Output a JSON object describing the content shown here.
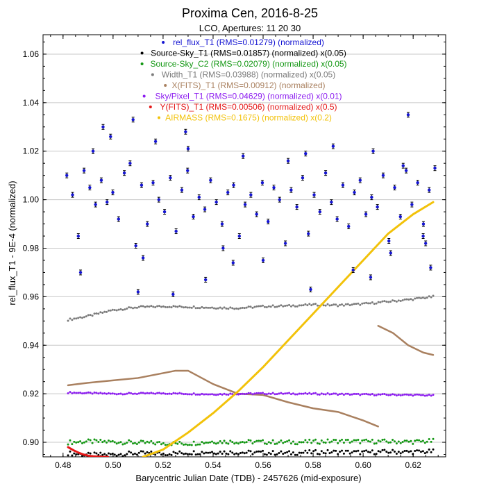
{
  "chart_data": {
    "type": "scatter",
    "title": "Proxima Cen, 2016-8-25",
    "subtitle": "LCO, Apertures: 11 20 30",
    "xlabel": "Barycentric Julian Date (TDB) - 2457626 (mid-exposure)",
    "ylabel": "rel_flux_T1 - 9E-4 (normalized)",
    "xlim": [
      0.472,
      0.633
    ],
    "ylim": [
      0.894,
      1.068
    ],
    "xticks": [
      0.48,
      0.5,
      0.52,
      0.54,
      0.56,
      0.58,
      0.6,
      0.62
    ],
    "xtick_labels": [
      "0.48",
      "0.50",
      "0.52",
      "0.54",
      "0.56",
      "0.58",
      "0.60",
      "0.62"
    ],
    "yticks": [
      0.9,
      0.92,
      0.94,
      0.96,
      0.98,
      1.0,
      1.02,
      1.04,
      1.06
    ],
    "ytick_labels": [
      "0.90",
      "0.92",
      "0.94",
      "0.96",
      "0.98",
      "1.00",
      "1.02",
      "1.04",
      "1.06"
    ],
    "grid": true,
    "legend_position": "top-center",
    "series": [
      {
        "name": "rel_flux_T1 (RMS=0.01279) (normalized)",
        "color": "#1414d2",
        "kind": "errorbar-scatter",
        "x": [
          0.4815,
          0.4838,
          0.4861,
          0.4884,
          0.4907,
          0.493,
          0.4953,
          0.4976,
          0.4999,
          0.5022,
          0.5045,
          0.5068,
          0.5091,
          0.5114,
          0.5137,
          0.516,
          0.5183,
          0.5206,
          0.5229,
          0.5252,
          0.5275,
          0.5298,
          0.5321,
          0.5344,
          0.5367,
          0.539,
          0.5413,
          0.5436,
          0.5459,
          0.5482,
          0.5505,
          0.5528,
          0.5551,
          0.5574,
          0.5597,
          0.562,
          0.5643,
          0.5666,
          0.5689,
          0.5712,
          0.5735,
          0.5758,
          0.5781,
          0.5804,
          0.5827,
          0.585,
          0.5873,
          0.5896,
          0.5919,
          0.5942,
          0.5965,
          0.5988,
          0.6011,
          0.6034,
          0.6057,
          0.608,
          0.6103,
          0.6126,
          0.6149,
          0.6172,
          0.6195,
          0.6218,
          0.6241,
          0.6264,
          0.6287,
          0.487,
          0.492,
          0.499,
          0.508,
          0.512,
          0.517,
          0.524,
          0.529,
          0.537,
          0.544,
          0.552,
          0.56,
          0.57,
          0.579,
          0.588,
          0.596,
          0.604,
          0.611,
          0.618,
          0.625,
          0.627,
          0.496,
          0.51,
          0.53,
          0.548,
          0.577,
          0.603,
          0.616,
          0.624
        ],
        "values": [
          1.01,
          1.002,
          0.985,
          1.012,
          1.005,
          0.998,
          1.008,
          0.999,
          1.003,
          0.992,
          1.011,
          1.015,
          0.981,
          1.006,
          0.99,
          1.007,
          1.0,
          0.995,
          1.009,
          0.987,
          1.004,
          1.012,
          0.993,
          1.001,
          0.996,
          1.008,
          0.999,
          0.99,
          1.003,
          1.006,
          0.985,
          0.998,
          1.002,
          0.994,
          1.007,
          0.991,
          1.005,
          1.0,
          0.982,
          1.004,
          0.997,
          1.009,
          0.986,
          1.002,
          0.995,
          1.011,
          0.999,
          0.992,
          1.006,
          0.989,
          1.003,
          1.008,
          0.994,
          1.001,
          0.997,
          1.01,
          0.983,
          1.005,
          0.993,
          1.012,
          0.998,
          1.007,
          0.99,
          1.004,
          1.013,
          0.97,
          1.02,
          1.026,
          1.033,
          0.976,
          1.024,
          0.961,
          1.028,
          0.967,
          0.98,
          1.018,
          0.975,
          1.016,
          0.963,
          1.022,
          0.971,
          1.02,
          0.978,
          1.035,
          0.982,
          0.972,
          1.03,
          0.962,
          1.021,
          0.974,
          1.019,
          0.968,
          1.014,
          0.985
        ]
      },
      {
        "name": "Source-Sky_T1 (RMS=0.01857) (normalized) x(0.05)",
        "color": "#000000",
        "kind": "band",
        "x": [
          0.482,
          0.49,
          0.5,
          0.51,
          0.52,
          0.53,
          0.54,
          0.55,
          0.56,
          0.57,
          0.58,
          0.59,
          0.6,
          0.61,
          0.62,
          0.628
        ],
        "values": [
          0.8955,
          0.8948,
          0.895,
          0.8955,
          0.8953,
          0.8957,
          0.896,
          0.8958,
          0.8957,
          0.8955,
          0.8959,
          0.896,
          0.8958,
          0.8961,
          0.896,
          0.8962
        ],
        "spread": 0.0018
      },
      {
        "name": "Source-Sky_C2 (RMS=0.02079) (normalized) x(0.05)",
        "color": "#139713",
        "kind": "band",
        "x": [
          0.482,
          0.49,
          0.5,
          0.51,
          0.52,
          0.53,
          0.54,
          0.55,
          0.56,
          0.57,
          0.58,
          0.59,
          0.6,
          0.61,
          0.62,
          0.628
        ],
        "values": [
          0.9,
          0.9003,
          0.9002,
          0.8998,
          0.8996,
          0.8995,
          0.9003,
          0.9002,
          0.9001,
          0.9,
          0.9002,
          0.9005,
          0.9003,
          0.9003,
          0.9002,
          0.9005
        ],
        "spread": 0.0018
      },
      {
        "name": "Width_T1 (RMS=0.03988) (normalized) x(0.05)",
        "color": "#7b7b7b",
        "kind": "band",
        "x": [
          0.482,
          0.49,
          0.5,
          0.51,
          0.52,
          0.53,
          0.54,
          0.55,
          0.56,
          0.57,
          0.58,
          0.59,
          0.6,
          0.61,
          0.62,
          0.628
        ],
        "values": [
          0.9505,
          0.952,
          0.9545,
          0.9557,
          0.956,
          0.9558,
          0.9555,
          0.9553,
          0.956,
          0.9562,
          0.9567,
          0.9565,
          0.957,
          0.958,
          0.959,
          0.96
        ],
        "spread": 0.0008
      },
      {
        "name": "X(FITS)_T1 (RMS=0.00912) (normalized)",
        "color": "#a9805f",
        "kind": "line-segments",
        "segments": [
          {
            "x": [
              0.482,
              0.49,
              0.5,
              0.51,
              0.52,
              0.525,
              0.53,
              0.54,
              0.55,
              0.56,
              0.57,
              0.58,
              0.59,
              0.6,
              0.606
            ],
            "values": [
              0.9235,
              0.9245,
              0.9255,
              0.9265,
              0.9285,
              0.9295,
              0.9295,
              0.924,
              0.92,
              0.9195,
              0.9165,
              0.914,
              0.9125,
              0.909,
              0.9065
            ]
          },
          {
            "x": [
              0.606,
              0.612,
              0.618,
              0.624,
              0.628
            ],
            "values": [
              0.948,
              0.945,
              0.94,
              0.937,
              0.936
            ]
          }
        ]
      },
      {
        "name": "Sky/Pixel_T1 (RMS=0.04629) (normalized) x(0.01)",
        "color": "#8c1cf0",
        "kind": "band",
        "x": [
          0.482,
          0.5,
          0.52,
          0.54,
          0.56,
          0.58,
          0.6,
          0.62,
          0.628
        ],
        "values": [
          0.9205,
          0.92,
          0.9202,
          0.9198,
          0.9201,
          0.92,
          0.9197,
          0.9195,
          0.9193
        ],
        "spread": 0.0006
      },
      {
        "name": "Y(FITS)_T1 (RMS=0.00506) (normalized) x(0.5)",
        "color": "#e41717",
        "kind": "line",
        "x": [
          0.482,
          0.484,
          0.486,
          0.488,
          0.49,
          0.492,
          0.494,
          0.496,
          0.498
        ],
        "values": [
          0.898,
          0.8968,
          0.8958,
          0.895,
          0.8945,
          0.8942,
          0.8941,
          0.894,
          0.894
        ]
      },
      {
        "name": "AIRMASS (RMS=0.1675) (normalized) x(0.2)",
        "color": "#f2c20a",
        "kind": "line",
        "x": [
          0.512,
          0.52,
          0.53,
          0.54,
          0.55,
          0.56,
          0.57,
          0.58,
          0.59,
          0.6,
          0.61,
          0.62,
          0.628
        ],
        "values": [
          0.894,
          0.897,
          0.904,
          0.912,
          0.921,
          0.931,
          0.942,
          0.953,
          0.964,
          0.975,
          0.986,
          0.994,
          0.999
        ]
      }
    ]
  }
}
